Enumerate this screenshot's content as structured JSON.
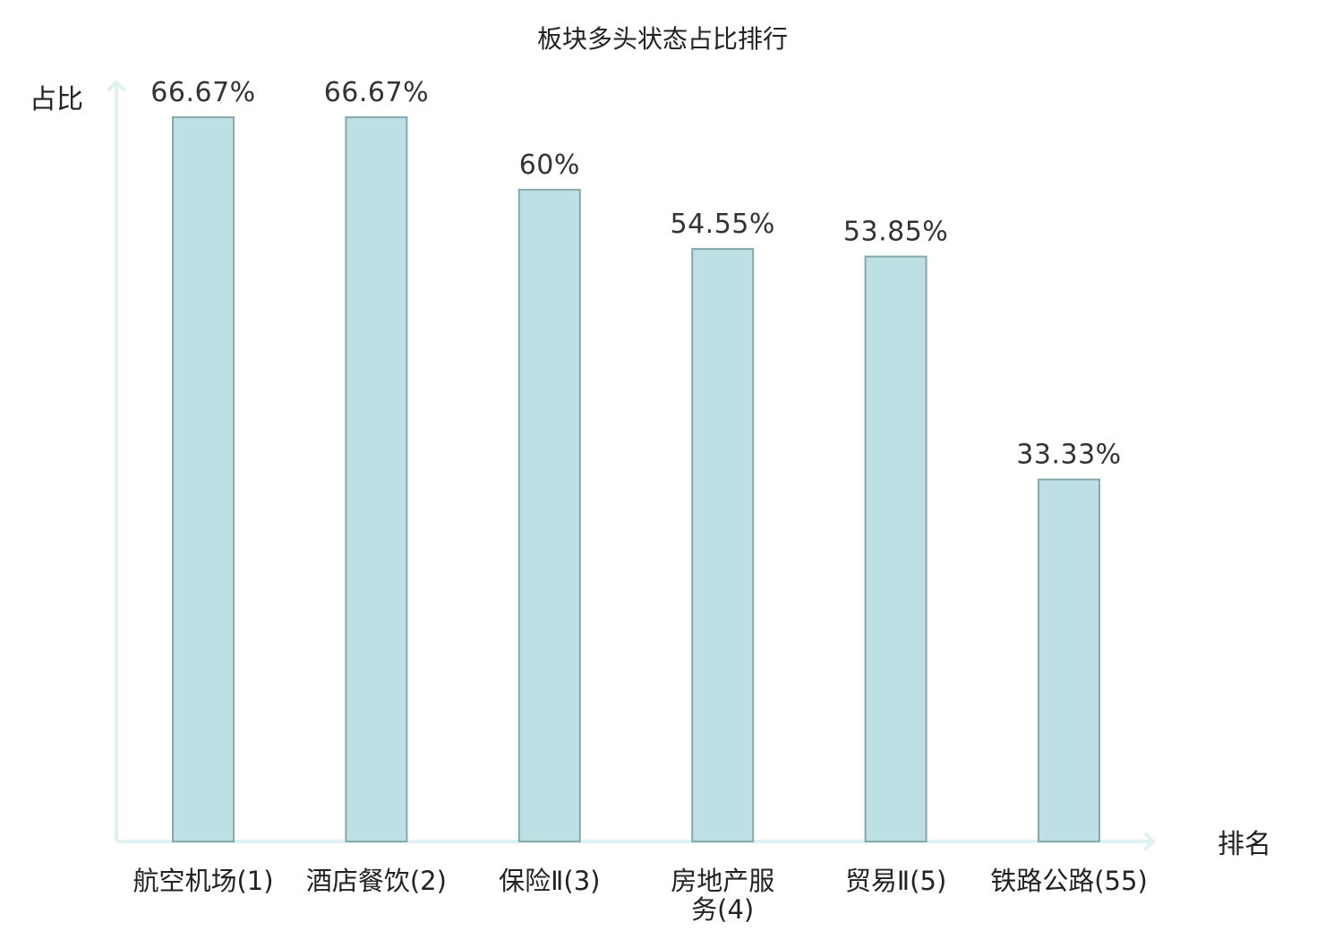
{
  "chart_data": {
    "type": "bar",
    "title": "板块多头状态占比排行",
    "ylabel": "占比",
    "xlabel": "排名",
    "categories": [
      [
        "航空机场(1)"
      ],
      [
        "酒店餐饮(2)"
      ],
      [
        "保险Ⅱ(3)"
      ],
      [
        "房地产服",
        "务(4)"
      ],
      [
        "贸易Ⅱ(5)"
      ],
      [
        "铁路公路(55)"
      ]
    ],
    "values": [
      66.67,
      66.67,
      60,
      54.55,
      53.85,
      33.33
    ],
    "value_labels": [
      "66.67%",
      "66.67%",
      "60%",
      "54.55%",
      "53.85%",
      "33.33%"
    ],
    "category_colors": [
      "#222222",
      "#222222",
      "#222222",
      "#222222",
      "#222222",
      "#e01010"
    ],
    "ylim": [
      0,
      66.67
    ],
    "grid": false,
    "colors": {
      "bar_fill": "#bce0e3",
      "bar_stroke": "#86a9ab",
      "axis": "#dff2ef",
      "highlight": "#e01010"
    }
  }
}
